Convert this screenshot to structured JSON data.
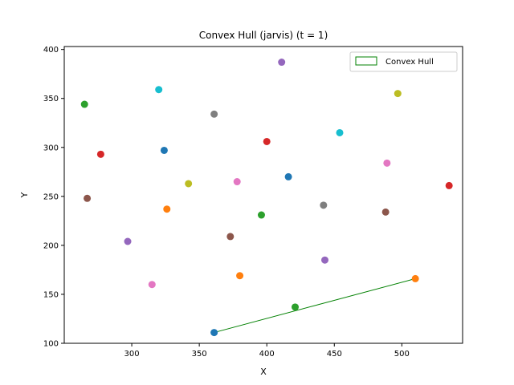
{
  "chart_data": {
    "type": "scatter",
    "title": "Convex Hull (jarvis) (t = 1)",
    "xlabel": "X",
    "ylabel": "Y",
    "xlim": [
      250,
      545
    ],
    "ylim": [
      100,
      403
    ],
    "xticks": [
      300,
      350,
      400,
      450,
      500
    ],
    "yticks": [
      100,
      150,
      200,
      250,
      300,
      350,
      400
    ],
    "grid": false,
    "legend": {
      "placement": "top-right",
      "entries": [
        "Convex Hull"
      ]
    },
    "points": [
      {
        "x": 411,
        "y": 387,
        "color": "#9467bd"
      },
      {
        "x": 320,
        "y": 359,
        "color": "#17becf"
      },
      {
        "x": 497,
        "y": 355,
        "color": "#bcbd22"
      },
      {
        "x": 265,
        "y": 344,
        "color": "#2ca02c"
      },
      {
        "x": 361,
        "y": 334,
        "color": "#7f7f7f"
      },
      {
        "x": 454,
        "y": 315,
        "color": "#17becf"
      },
      {
        "x": 400,
        "y": 306,
        "color": "#d62728"
      },
      {
        "x": 324,
        "y": 297,
        "color": "#1f77b4"
      },
      {
        "x": 277,
        "y": 293,
        "color": "#d62728"
      },
      {
        "x": 489,
        "y": 284,
        "color": "#e377c2"
      },
      {
        "x": 416,
        "y": 270,
        "color": "#1f77b4"
      },
      {
        "x": 378,
        "y": 265,
        "color": "#e377c2"
      },
      {
        "x": 342,
        "y": 263,
        "color": "#bcbd22"
      },
      {
        "x": 535,
        "y": 261,
        "color": "#d62728"
      },
      {
        "x": 267,
        "y": 248,
        "color": "#8c564b"
      },
      {
        "x": 442,
        "y": 241,
        "color": "#7f7f7f"
      },
      {
        "x": 326,
        "y": 237,
        "color": "#ff7f0e"
      },
      {
        "x": 488,
        "y": 234,
        "color": "#8c564b"
      },
      {
        "x": 396,
        "y": 231,
        "color": "#2ca02c"
      },
      {
        "x": 373,
        "y": 209,
        "color": "#8c564b"
      },
      {
        "x": 297,
        "y": 204,
        "color": "#9467bd"
      },
      {
        "x": 443,
        "y": 185,
        "color": "#9467bd"
      },
      {
        "x": 380,
        "y": 169,
        "color": "#ff7f0e"
      },
      {
        "x": 510,
        "y": 166,
        "color": "#ff7f0e"
      },
      {
        "x": 315,
        "y": 160,
        "color": "#e377c2"
      },
      {
        "x": 421,
        "y": 137,
        "color": "#2ca02c"
      },
      {
        "x": 361,
        "y": 111,
        "color": "#1f77b4"
      }
    ],
    "hull": {
      "name": "Convex Hull",
      "color": "#008000",
      "points": [
        {
          "x": 361,
          "y": 111
        },
        {
          "x": 510,
          "y": 166
        }
      ]
    }
  }
}
